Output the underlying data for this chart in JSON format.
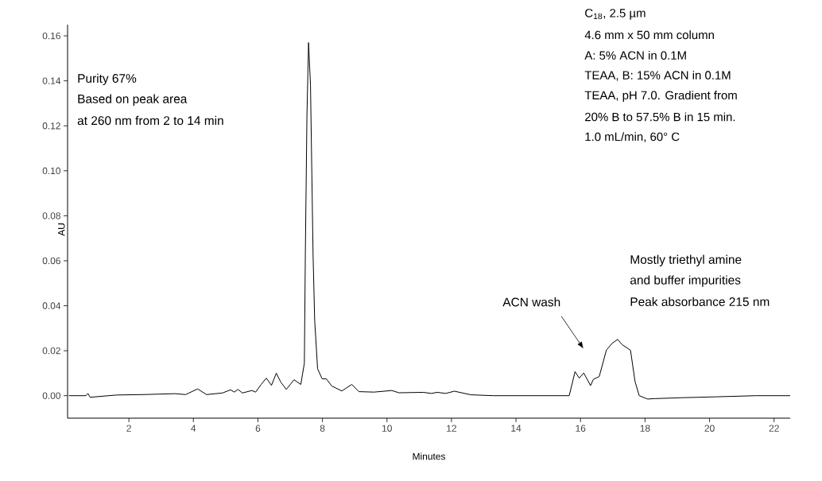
{
  "chart_data": {
    "type": "line",
    "xlabel": "Minutes",
    "ylabel": "AU",
    "xlim": [
      0.1,
      22.5
    ],
    "ylim": [
      -0.01,
      0.165
    ],
    "xticks": [
      2,
      4,
      6,
      8,
      10,
      12,
      14,
      16,
      18,
      20,
      22
    ],
    "yticks": [
      {
        "value": 0,
        "label": "0.00"
      },
      {
        "value": 0.02,
        "label": "0.02"
      },
      {
        "value": 0.04,
        "label": "0.04"
      },
      {
        "value": 0.06,
        "label": "0.06"
      },
      {
        "value": 0.08,
        "label": "0.08"
      },
      {
        "value": 0.1,
        "label": "0.10"
      },
      {
        "value": 0.12,
        "label": "0.12"
      },
      {
        "value": 0.14,
        "label": "0.14"
      },
      {
        "value": 0.16,
        "label": "0.16"
      }
    ],
    "grid": false,
    "marker": "none",
    "line_style": "solid",
    "series": [
      {
        "color": "#000000",
        "x": [
          0.14,
          0.67,
          0.73,
          0.8,
          1.62,
          2.44,
          3.43,
          3.76,
          4.13,
          4.41,
          4.9,
          5.15,
          5.27,
          5.38,
          5.52,
          5.81,
          5.93,
          6.1,
          6.26,
          6.42,
          6.57,
          6.71,
          6.88,
          7.12,
          7.33,
          7.44,
          7.47,
          7.52,
          7.57,
          7.63,
          7.71,
          7.76,
          7.85,
          7.99,
          8.12,
          8.29,
          8.6,
          8.91,
          9.13,
          9.6,
          10.15,
          10.37,
          11.12,
          11.38,
          11.56,
          11.82,
          12.09,
          12.6,
          13.3,
          15.65,
          15.83,
          15.96,
          16.1,
          16.31,
          16.4,
          16.58,
          16.8,
          16.98,
          17.15,
          17.29,
          17.55,
          17.69,
          17.82,
          18.08,
          18.3,
          19.14,
          20.2,
          21.43,
          22.5
        ],
        "values": [
          0.0,
          0.0,
          0.001,
          -0.0007,
          0.0003,
          0.0005,
          0.0009,
          0.0005,
          0.003,
          0.0005,
          0.0012,
          0.0026,
          0.0016,
          0.0028,
          0.0012,
          0.0023,
          0.0016,
          0.005,
          0.0078,
          0.0046,
          0.01,
          0.006,
          0.0028,
          0.0071,
          0.005,
          0.0145,
          0.0625,
          0.125,
          0.157,
          0.138,
          0.0625,
          0.0334,
          0.012,
          0.0075,
          0.0075,
          0.0043,
          0.0021,
          0.005,
          0.0018,
          0.0016,
          0.0023,
          0.0013,
          0.0015,
          0.001,
          0.0015,
          0.001,
          0.002,
          0.0004,
          0.0,
          0.0,
          0.0107,
          0.0078,
          0.0101,
          0.0045,
          0.0073,
          0.0085,
          0.0202,
          0.0233,
          0.025,
          0.0227,
          0.0202,
          0.0063,
          0.0,
          -0.0015,
          -0.0013,
          -0.0009,
          -0.0005,
          0.0,
          0.0
        ]
      }
    ],
    "annotations": [
      "Purity 67%",
      "Based on peak area",
      "at 260 nm from 2 to 14 min",
      "C$_{18}$, 2.5 µm",
      "4.6 mm x 50 mm column",
      "A: 5% ACN in 0.1M",
      "TEAA, B: 15% ACN in 0.1M",
      "TEAA, pH 7.0. Gradient from",
      "20% B to 57.5% B in 15 min.",
      "1.0 mL/min, 60° C",
      "Mostly triethyl amine",
      "and buffer impurities",
      "Peak absorbance 215 nm",
      "ACN wash"
    ]
  }
}
